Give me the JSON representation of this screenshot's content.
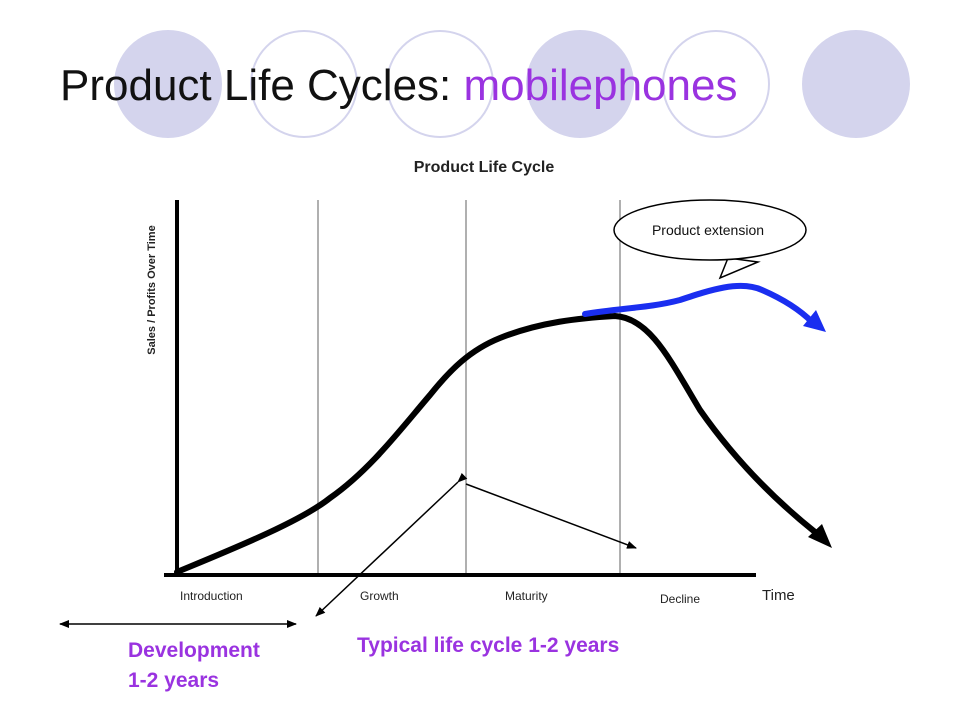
{
  "slide": {
    "title_main": "Product Life Cycles: ",
    "title_accent": "mobilephones"
  },
  "diagram": {
    "title": "Product Life Cycle",
    "y_axis_label": "Sales / Profits Over Time",
    "x_axis_label": "Time",
    "stages": [
      "Introduction",
      "Growth",
      "Maturity",
      "Decline"
    ],
    "callout": "Product extension"
  },
  "annotations": {
    "development_line1": "Development",
    "development_line2": "1-2 years",
    "typical_cycle": "Typical life cycle 1-2 years"
  },
  "colors": {
    "accent_purple": "#9a33e0",
    "decor_circle": "#d4d4ed",
    "extension_curve": "#1a2ef0",
    "main_curve": "#000000",
    "stage_divider": "#b0b0b0"
  }
}
